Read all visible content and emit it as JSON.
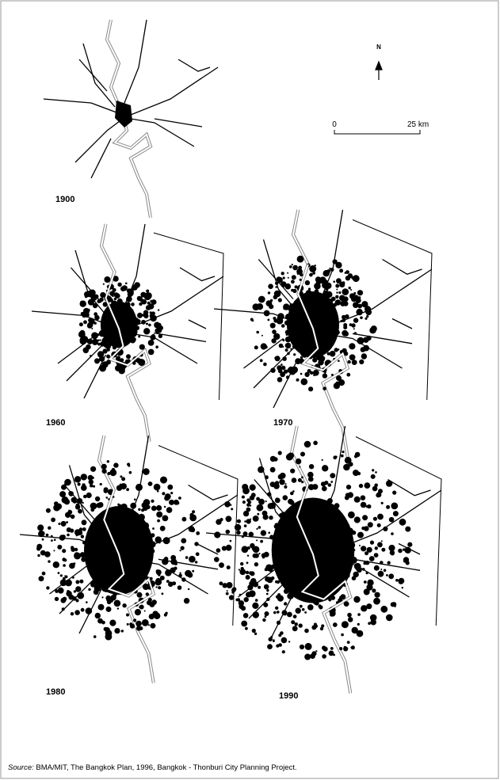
{
  "north_label": "N",
  "scale_bar": {
    "start": "0",
    "end": "25 km"
  },
  "maps": [
    {
      "year": "1900"
    },
    {
      "year": "1960"
    },
    {
      "year": "1970"
    },
    {
      "year": "1980"
    },
    {
      "year": "1990"
    }
  ],
  "source": {
    "prefix": "Source:",
    "text": " BMA/MIT, The Bangkok Plan, 1996, Bangkok - Thonburi City Planning Project."
  }
}
